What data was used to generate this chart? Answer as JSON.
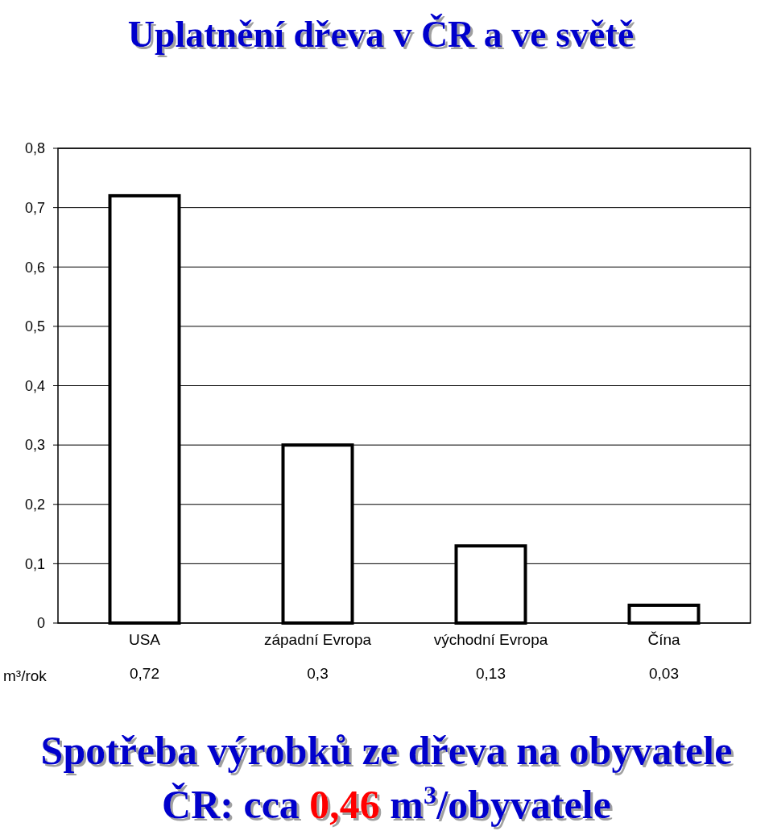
{
  "chart_data": {
    "type": "bar",
    "title": "Uplatnění dřeva v ČR a ve světě",
    "categories": [
      "USA",
      "západní Evropa",
      "východní Evropa",
      "Čína"
    ],
    "values": [
      0.72,
      0.3,
      0.13,
      0.03
    ],
    "color": "#ffffff",
    "value_labels": [
      "0,72",
      "0,3",
      "0,13",
      "0,03"
    ],
    "ylim": [
      0,
      0.8
    ],
    "yticks": [
      {
        "value": 0,
        "label": "0"
      },
      {
        "value": 0.1,
        "label": "0,1"
      },
      {
        "value": 0.2,
        "label": "0,2"
      },
      {
        "value": 0.3,
        "label": "0,3"
      },
      {
        "value": 0.4,
        "label": "0,4"
      },
      {
        "value": 0.5,
        "label": "0,5"
      },
      {
        "value": 0.6,
        "label": "0,6"
      },
      {
        "value": 0.7,
        "label": "0,7"
      },
      {
        "value": 0.8,
        "label": "0,8"
      }
    ],
    "grid": "y",
    "annotations": [
      "m³/rok",
      "Spotřeba výrobků ze dřeva na obyvatele",
      "ČR: cca 0,46 m$^{3}$/obyvatele"
    ]
  }
}
